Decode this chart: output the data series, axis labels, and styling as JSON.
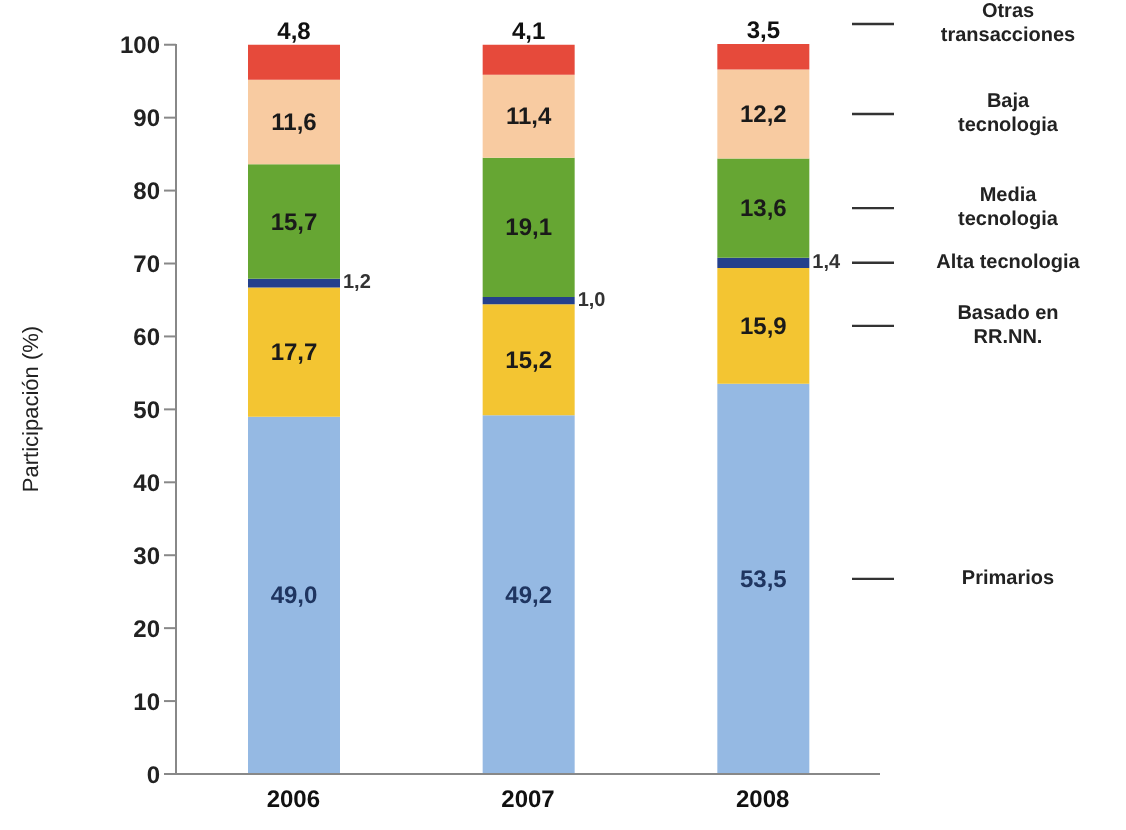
{
  "chart_data": {
    "type": "bar",
    "stacked": true,
    "ylabel": "Participación (%)",
    "categories": [
      "2006",
      "2007",
      "2008"
    ],
    "series": [
      {
        "name": "Primarios",
        "color": "#95b9e3",
        "values": [
          49.0,
          49.2,
          53.5
        ],
        "value_labels": [
          "49,0",
          "49,2",
          "53,5"
        ]
      },
      {
        "name": "Basado en RR.NN.",
        "color": "#f3c532",
        "values": [
          17.7,
          15.2,
          15.9
        ],
        "value_labels": [
          "17,7",
          "15,2",
          "15,9"
        ]
      },
      {
        "name": "Alta tecnologia",
        "color": "#24408c",
        "values": [
          1.2,
          1.0,
          1.4
        ],
        "value_labels": [
          "1,2",
          "1,0",
          "1,4"
        ]
      },
      {
        "name": "Media tecnologia",
        "color": "#66a633",
        "values": [
          15.7,
          19.1,
          13.6
        ],
        "value_labels": [
          "15,7",
          "19,1",
          "13,6"
        ]
      },
      {
        "name": "Baja tecnologia",
        "color": "#f8cba1",
        "values": [
          11.6,
          11.4,
          12.2
        ],
        "value_labels": [
          "11,6",
          "11,4",
          "12,2"
        ]
      },
      {
        "name": "Otras transacciones",
        "color": "#e64a3b",
        "values": [
          4.8,
          4.1,
          3.5
        ],
        "value_labels": [
          "4,8",
          "4,1",
          "3,5"
        ]
      }
    ],
    "ylim": [
      0,
      100.1
    ],
    "yticks": [
      0,
      10,
      20,
      30,
      40,
      50,
      60,
      70,
      80,
      90,
      100
    ]
  }
}
